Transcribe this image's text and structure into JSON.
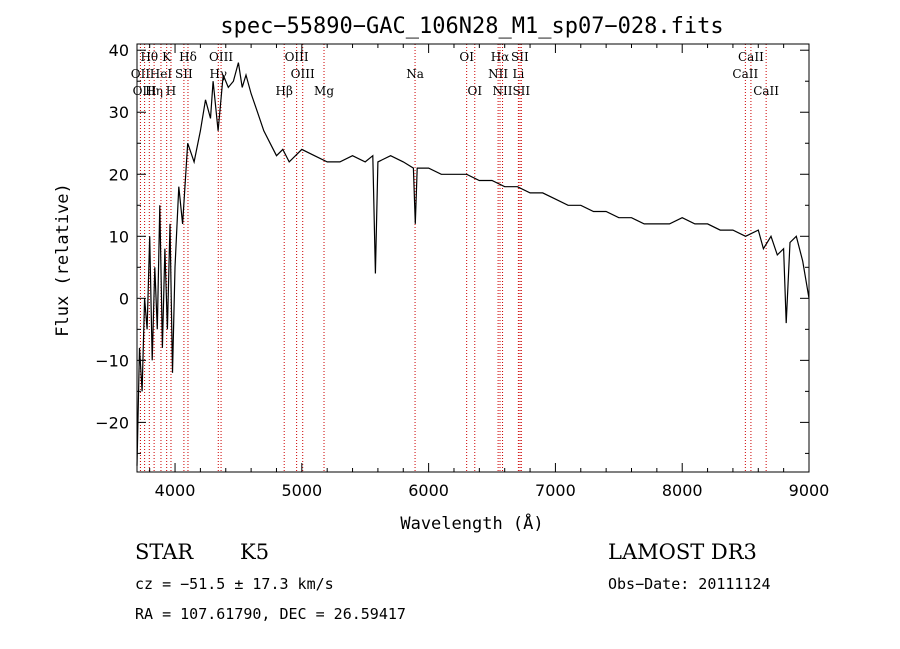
{
  "chart_data": {
    "type": "line",
    "title": "spec−55890−GAC_106N28_M1_sp07−028.fits",
    "xlabel": "Wavelength (Å)",
    "ylabel": "Flux (relative)",
    "xlim": [
      3700,
      9000
    ],
    "ylim": [
      -28,
      41
    ],
    "x_ticks": [
      4000,
      5000,
      6000,
      7000,
      8000,
      9000
    ],
    "y_ticks": [
      -20,
      -10,
      0,
      10,
      20,
      30,
      40
    ],
    "y_tick_labels": [
      "−20",
      "−10",
      "0",
      "10",
      "20",
      "30",
      "40"
    ],
    "grid": false,
    "series": [
      {
        "color": "#000000",
        "x": [
          3700,
          3720,
          3740,
          3760,
          3780,
          3800,
          3820,
          3840,
          3860,
          3880,
          3900,
          3920,
          3940,
          3960,
          3980,
          4000,
          4030,
          4060,
          4100,
          4150,
          4200,
          4240,
          4280,
          4300,
          4320,
          4340,
          4380,
          4420,
          4460,
          4500,
          4530,
          4560,
          4600,
          4650,
          4700,
          4750,
          4800,
          4850,
          4900,
          5000,
          5100,
          5200,
          5300,
          5400,
          5500,
          5560,
          5580,
          5600,
          5700,
          5800,
          5880,
          5895,
          5910,
          6000,
          6100,
          6200,
          6300,
          6400,
          6500,
          6600,
          6700,
          6800,
          6900,
          7000,
          7100,
          7200,
          7300,
          7400,
          7500,
          7600,
          7700,
          7800,
          7900,
          8000,
          8100,
          8200,
          8300,
          8400,
          8500,
          8600,
          8640,
          8700,
          8750,
          8800,
          8820,
          8850,
          8900,
          8950,
          9000
        ],
        "y": [
          -27,
          -8,
          -15,
          0,
          -5,
          10,
          -10,
          5,
          -5,
          15,
          -8,
          8,
          -5,
          12,
          -12,
          5,
          18,
          12,
          25,
          22,
          27,
          32,
          29,
          35,
          31,
          27,
          36,
          34,
          35,
          38,
          34,
          36,
          33,
          30,
          27,
          25,
          23,
          24,
          22,
          24,
          23,
          22,
          22,
          23,
          22,
          23,
          4,
          22,
          23,
          22,
          21,
          12,
          21,
          21,
          20,
          20,
          20,
          19,
          19,
          18,
          18,
          17,
          17,
          16,
          15,
          15,
          14,
          14,
          13,
          13,
          12,
          12,
          12,
          13,
          12,
          12,
          11,
          11,
          10,
          11,
          8,
          10,
          7,
          8,
          -4,
          9,
          10,
          6,
          0
        ]
      }
    ],
    "spectral_lines": [
      {
        "name": "Hθ",
        "x": 3797,
        "row": 1
      },
      {
        "name": "OII",
        "x": 3727,
        "row": 2
      },
      {
        "name": "OIII",
        "x": 3760,
        "row": 3
      },
      {
        "name": "Hη",
        "x": 3835,
        "row": 3
      },
      {
        "name": "HeI",
        "x": 3889,
        "row": 2
      },
      {
        "name": "K",
        "x": 3934,
        "row": 1
      },
      {
        "name": "SII",
        "x": 4070,
        "row": 2
      },
      {
        "name": "H",
        "x": 3968,
        "row": 3
      },
      {
        "name": "Hδ",
        "x": 4102,
        "row": 1
      },
      {
        "name": "OIII",
        "x": 4363,
        "row": 1
      },
      {
        "name": "Hγ",
        "x": 4341,
        "row": 2
      },
      {
        "name": "Hβ",
        "x": 4861,
        "row": 3
      },
      {
        "name": "OIII",
        "x": 4959,
        "row": 1
      },
      {
        "name": "OIII",
        "x": 5007,
        "row": 2
      },
      {
        "name": "Mg",
        "x": 5175,
        "row": 3
      },
      {
        "name": "Na",
        "x": 5893,
        "row": 2
      },
      {
        "name": "OI",
        "x": 6300,
        "row": 1
      },
      {
        "name": "OI",
        "x": 6364,
        "row": 3
      },
      {
        "name": "Hα",
        "x": 6563,
        "row": 1
      },
      {
        "name": "NII",
        "x": 6548,
        "row": 2
      },
      {
        "name": "NII",
        "x": 6583,
        "row": 3
      },
      {
        "name": "SII",
        "x": 6720,
        "row": 1
      },
      {
        "name": "Li",
        "x": 6708,
        "row": 2
      },
      {
        "name": "SII",
        "x": 6731,
        "row": 3
      },
      {
        "name": "CaII",
        "x": 8542,
        "row": 1
      },
      {
        "name": "CaII",
        "x": 8498,
        "row": 2
      },
      {
        "name": "CaII",
        "x": 8662,
        "row": 3
      }
    ],
    "line_marker_color": "#cc0000"
  },
  "info": {
    "class": "STAR",
    "subclass": "K5",
    "survey": "LAMOST DR3",
    "cz": "cz = −51.5 ± 17.3 km/s",
    "obs_date": "Obs−Date: 20111124",
    "coords": "RA = 107.61790, DEC =  26.59417"
  }
}
